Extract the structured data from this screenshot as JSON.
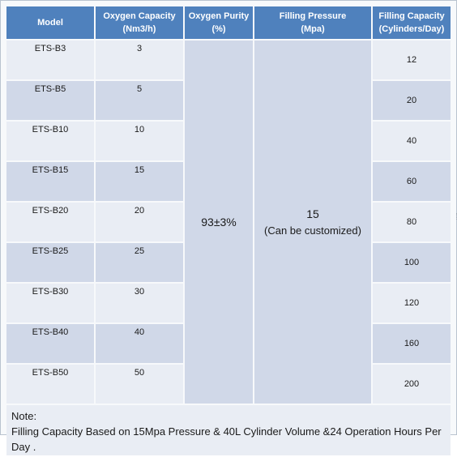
{
  "headers": [
    {
      "line1": "Model",
      "line2": ""
    },
    {
      "line1": "Oxygen Capacity",
      "line2": "(Nm3/h)"
    },
    {
      "line1": "Oxygen Purity",
      "line2": "(%)"
    },
    {
      "line1": "Filling Pressure",
      "line2": "(Mpa)"
    },
    {
      "line1": "Filling Capacity",
      "line2": "(Cylinders/Day)"
    }
  ],
  "rows": [
    {
      "model": "ETS-B3",
      "capacity": "3",
      "filling": "12"
    },
    {
      "model": "ETS-B5",
      "capacity": "5",
      "filling": "20"
    },
    {
      "model": "ETS-B10",
      "capacity": "10",
      "filling": "40"
    },
    {
      "model": "ETS-B15",
      "capacity": "15",
      "filling": "60"
    },
    {
      "model": "ETS-B20",
      "capacity": "20",
      "filling": "80"
    },
    {
      "model": "ETS-B25",
      "capacity": "25",
      "filling": "100"
    },
    {
      "model": "ETS-B30",
      "capacity": "30",
      "filling": "120"
    },
    {
      "model": "ETS-B40",
      "capacity": "40",
      "filling": "160"
    },
    {
      "model": "ETS-B50",
      "capacity": "50",
      "filling": "200"
    }
  ],
  "merged": {
    "purity": "93±3%",
    "pressure": "15",
    "pressure_note": "(Can be customized)"
  },
  "note": {
    "title": "Note:",
    "text": "Filling Capacity Based on 15Mpa Pressure & 40L Cylinder Volume &24 Operation Hours Per Day ."
  },
  "colors": {
    "header": "#4f81bd",
    "row_dark": "#d0d8e8",
    "row_light": "#e9edf4"
  }
}
